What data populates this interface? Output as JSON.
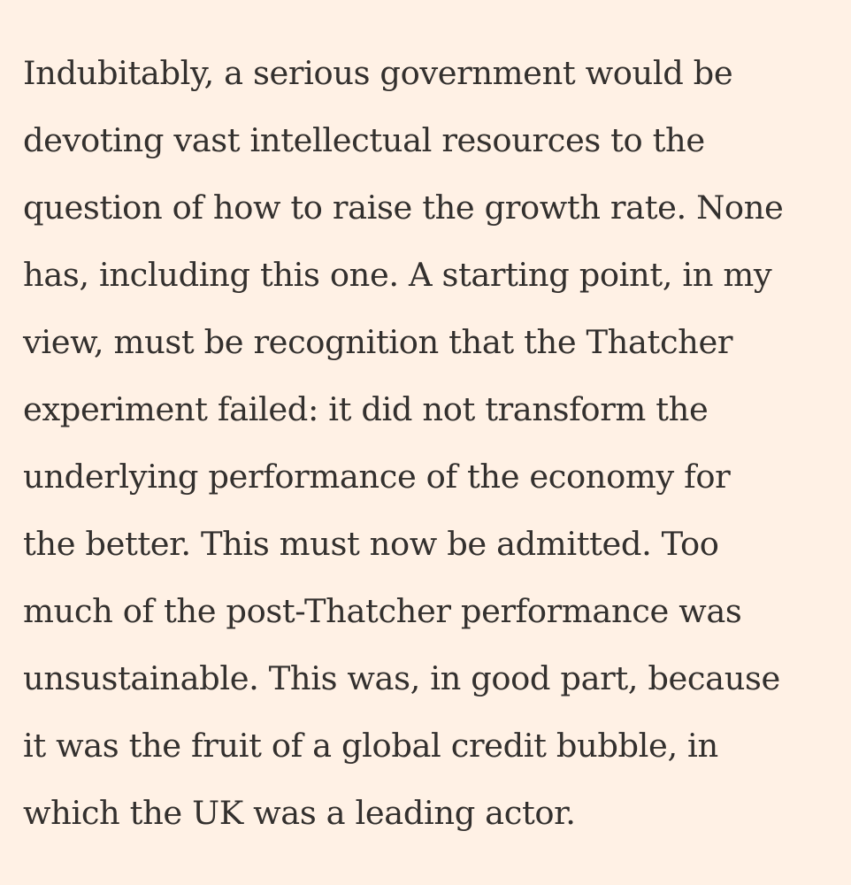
{
  "article": {
    "paragraph_lines": [
      "Indubitably, a serious government would be",
      "devoting vast intellectual resources to the",
      "question of how to raise the growth rate. None",
      "has, including this one. A starting point, in my",
      "view, must be recognition that the Thatcher",
      "experiment failed: it did not transform the",
      "underlying performance of the economy for",
      "the better. This must now be admitted. Too",
      "much of the post-Thatcher performance was",
      "unsustainable. This was, in good part, because",
      "it was the fruit of a global credit bubble, in",
      "which the UK was a leading actor."
    ]
  },
  "colors": {
    "background": "#fff1e5",
    "text": "#33302e"
  }
}
